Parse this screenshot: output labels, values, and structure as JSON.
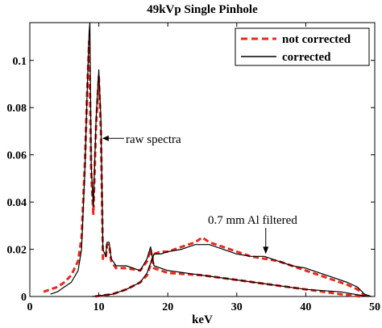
{
  "chart_data": {
    "type": "line",
    "title": "49kVp Single Pinhole",
    "xlabel": "keV",
    "ylabel": "",
    "xlim": [
      0,
      50
    ],
    "ylim": [
      0,
      0.116
    ],
    "xticks": [
      0,
      10,
      20,
      30,
      40,
      50
    ],
    "xtick_labels": [
      "0",
      "10",
      "20",
      "30",
      "40",
      "50"
    ],
    "yticks": [
      0,
      0.02,
      0.04,
      0.06,
      0.08,
      0.1
    ],
    "ytick_labels": [
      "0",
      "0.02",
      "0.04",
      "0.06",
      "0.08",
      "0.1"
    ],
    "grid": false,
    "legend_position": "top-right",
    "legend": [
      {
        "label": "not corrected",
        "color": "#e8281e",
        "style": "dashed"
      },
      {
        "label": "corrected",
        "color": "#000000",
        "style": "solid"
      }
    ],
    "annotations": [
      {
        "text": "raw spectra",
        "points_to": [
          10.5,
          0.067
        ]
      },
      {
        "text": "0.7 mm Al filtered",
        "points_to": [
          34.2,
          0.018
        ]
      }
    ],
    "series": [
      {
        "label": "not corrected",
        "color": "#e8281e",
        "curves": [
          {
            "x": [
              2.0,
              3.0,
              4.0,
              5.0,
              6.0,
              7.0,
              7.5,
              8.0,
              8.3,
              8.6,
              8.9,
              9.2,
              9.6,
              10.0,
              10.3,
              10.6,
              11.0,
              11.2,
              11.5,
              11.8,
              12.5,
              14.0,
              16.0,
              17.0,
              17.5,
              18.0,
              20.0,
              25.0,
              30.0,
              35.0,
              40.0,
              45.0,
              48.0
            ],
            "y": [
              0.002,
              0.003,
              0.004,
              0.006,
              0.009,
              0.015,
              0.025,
              0.058,
              0.085,
              0.108,
              0.052,
              0.035,
              0.072,
              0.093,
              0.07,
              0.016,
              0.016,
              0.022,
              0.022,
              0.015,
              0.012,
              0.012,
              0.011,
              0.015,
              0.02,
              0.012,
              0.01,
              0.009,
              0.007,
              0.005,
              0.003,
              0.001,
              0.0
            ]
          },
          {
            "x": [
              9.5,
              12.0,
              14.0,
              16.0,
              17.0,
              18.0,
              19.0,
              20.0,
              22.0,
              24.0,
              25.0,
              26.0,
              28.0,
              30.0,
              32.0,
              34.0,
              36.0,
              38.0,
              40.0,
              42.0,
              44.0,
              46.0,
              47.5,
              48.3,
              49.0
            ],
            "y": [
              0.0,
              0.001,
              0.003,
              0.006,
              0.009,
              0.018,
              0.019,
              0.019,
              0.021,
              0.023,
              0.025,
              0.023,
              0.021,
              0.019,
              0.017,
              0.016,
              0.015,
              0.013,
              0.011,
              0.009,
              0.007,
              0.005,
              0.003,
              0.001,
              0.0
            ]
          }
        ]
      },
      {
        "label": "corrected",
        "color": "#000000",
        "curves": [
          {
            "x": [
              3.0,
              4.0,
              5.0,
              6.0,
              7.0,
              7.5,
              8.0,
              8.3,
              8.6,
              8.7,
              8.9,
              9.2,
              9.6,
              10.0,
              10.3,
              10.6,
              11.0,
              11.2,
              11.5,
              11.8,
              12.5,
              14.0,
              16.0,
              17.0,
              17.5,
              18.0,
              20.0,
              25.0,
              30.0,
              35.0,
              40.0,
              45.0,
              49.0
            ],
            "y": [
              0.001,
              0.002,
              0.004,
              0.006,
              0.011,
              0.02,
              0.055,
              0.085,
              0.112,
              0.116,
              0.055,
              0.038,
              0.075,
              0.096,
              0.075,
              0.02,
              0.017,
              0.023,
              0.023,
              0.016,
              0.013,
              0.013,
              0.011,
              0.016,
              0.021,
              0.013,
              0.011,
              0.009,
              0.007,
              0.005,
              0.003,
              0.002,
              0.0
            ]
          },
          {
            "x": [
              9.0,
              12.0,
              14.0,
              16.0,
              17.0,
              18.0,
              19.0,
              20.0,
              22.0,
              24.0,
              25.0,
              26.0,
              28.0,
              30.0,
              32.0,
              34.0,
              36.0,
              38.0,
              40.0,
              42.0,
              44.0,
              46.0,
              47.5,
              48.5,
              49.5
            ],
            "y": [
              0.0,
              0.001,
              0.003,
              0.006,
              0.01,
              0.018,
              0.018,
              0.019,
              0.02,
              0.022,
              0.022,
              0.022,
              0.02,
              0.018,
              0.017,
              0.017,
              0.015,
              0.013,
              0.012,
              0.01,
              0.008,
              0.006,
              0.004,
              0.001,
              0.0
            ]
          }
        ]
      }
    ]
  }
}
